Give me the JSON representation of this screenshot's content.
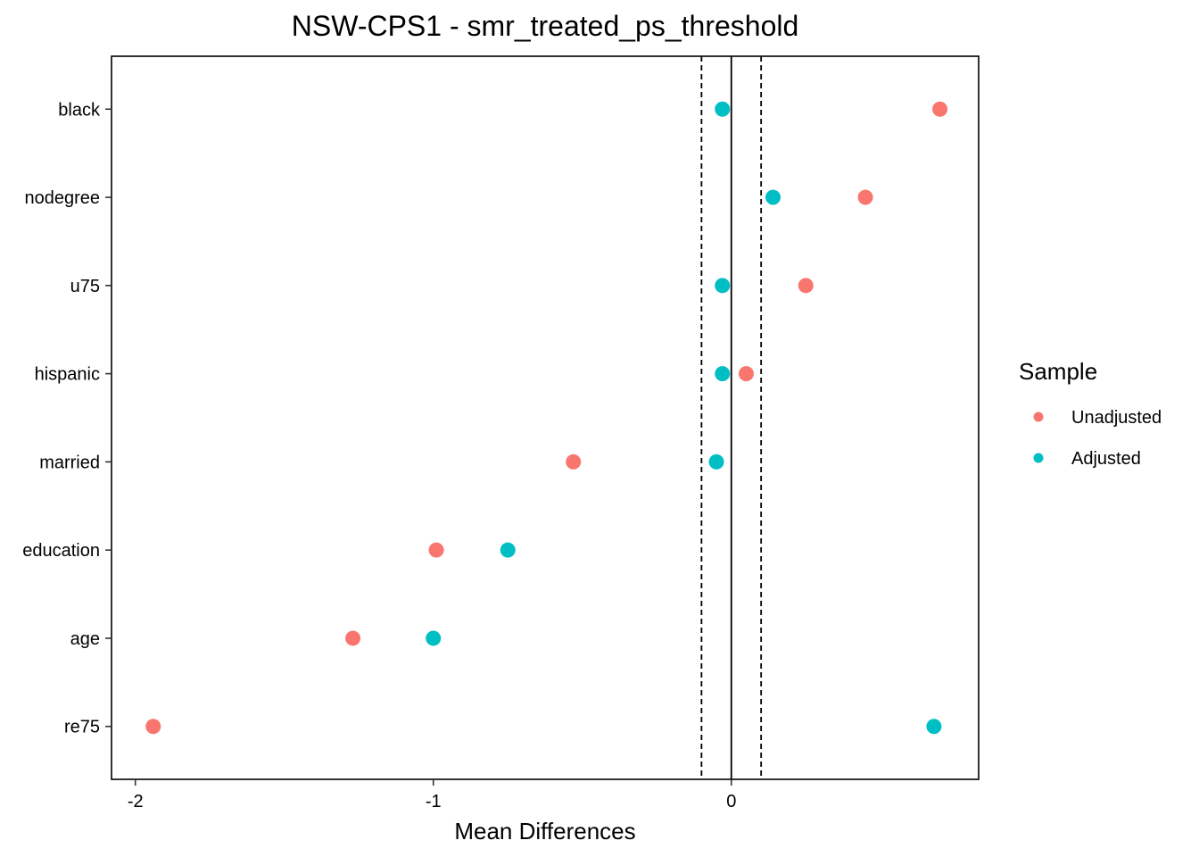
{
  "chart_data": {
    "type": "scatter",
    "title": "NSW-CPS1 - smr_treated_ps_threshold",
    "xlabel": "Mean Differences",
    "ylabel": "",
    "xlim": [
      -2.08,
      0.83
    ],
    "x_ticks": [
      {
        "value": -2,
        "label": "-2"
      },
      {
        "value": -1,
        "label": "-1"
      },
      {
        "value": 0,
        "label": "0"
      }
    ],
    "categories": [
      "black",
      "nodegree",
      "u75",
      "hispanic",
      "married",
      "education",
      "age",
      "re75"
    ],
    "series": [
      {
        "name": "Unadjusted",
        "color": "#F8766D",
        "values": [
          0.7,
          0.45,
          0.25,
          0.05,
          -0.53,
          -0.99,
          -1.27,
          -1.94
        ]
      },
      {
        "name": "Adjusted",
        "color": "#00BFC4",
        "values": [
          -0.03,
          0.14,
          -0.03,
          -0.03,
          -0.05,
          -0.75,
          -1.0,
          0.68
        ]
      }
    ],
    "reference_lines": [
      {
        "value": 0,
        "style": "solid"
      },
      {
        "value": -0.1,
        "style": "dashed"
      },
      {
        "value": 0.1,
        "style": "dashed"
      }
    ],
    "grid": false,
    "legend": {
      "title": "Sample",
      "position": "right"
    }
  }
}
